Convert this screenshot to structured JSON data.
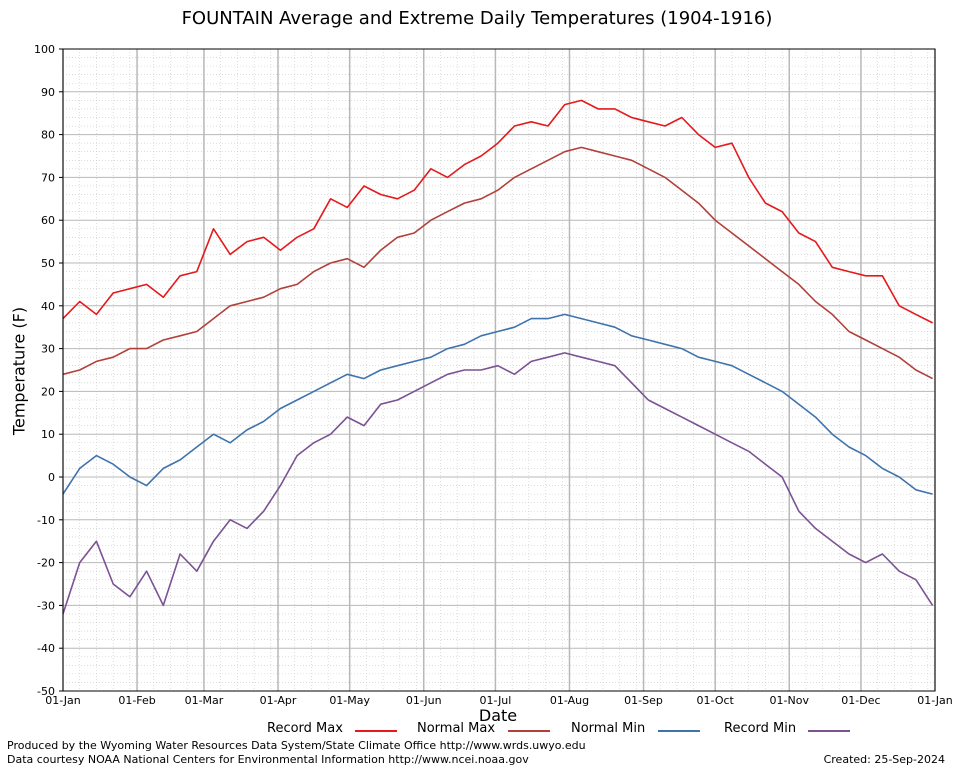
{
  "chart_data": {
    "type": "line",
    "title": "FOUNTAIN Average and Extreme Daily Temperatures (1904-1916)",
    "xlabel": "Date",
    "ylabel": "Temperature (F)",
    "ylim": [
      -50,
      100
    ],
    "yticks": [
      100,
      90,
      80,
      70,
      60,
      50,
      40,
      30,
      20,
      10,
      0,
      -10,
      -20,
      -30,
      -40,
      -50
    ],
    "xtick_labels": [
      "01-Jan",
      "01-Feb",
      "01-Mar",
      "01-Apr",
      "01-May",
      "01-Jun",
      "01-Jul",
      "01-Aug",
      "01-Sep",
      "01-Oct",
      "01-Nov",
      "01-Dec",
      "01-Jan"
    ],
    "xtick_days": [
      0,
      31,
      59,
      90,
      120,
      151,
      181,
      212,
      243,
      273,
      304,
      334,
      365
    ],
    "grid": true,
    "legend_position": "bottom",
    "series_points_note": "Values sampled every 7 days from day 0 (01-Jan) to day 364",
    "x_days": [
      0,
      7,
      14,
      21,
      28,
      35,
      42,
      49,
      56,
      63,
      70,
      77,
      84,
      91,
      98,
      105,
      112,
      119,
      126,
      133,
      140,
      147,
      154,
      161,
      168,
      175,
      182,
      189,
      196,
      203,
      210,
      217,
      224,
      231,
      238,
      245,
      252,
      259,
      266,
      273,
      280,
      287,
      294,
      301,
      308,
      315,
      322,
      329,
      336,
      343,
      350,
      357,
      364
    ],
    "series": [
      {
        "name": "Record Max",
        "color": "#e41a1c",
        "values": [
          37,
          41,
          38,
          43,
          44,
          45,
          42,
          47,
          48,
          58,
          52,
          55,
          56,
          53,
          56,
          58,
          65,
          63,
          68,
          66,
          65,
          67,
          72,
          70,
          73,
          75,
          78,
          82,
          83,
          82,
          87,
          88,
          86,
          86,
          84,
          83,
          82,
          84,
          80,
          77,
          78,
          70,
          64,
          62,
          57,
          55,
          49,
          48,
          47,
          47,
          40,
          38,
          36
        ]
      },
      {
        "name": "Normal Max",
        "color": "#b2403a",
        "values": [
          24,
          25,
          27,
          28,
          30,
          30,
          32,
          33,
          34,
          37,
          40,
          41,
          42,
          44,
          45,
          48,
          50,
          51,
          49,
          53,
          56,
          57,
          60,
          62,
          64,
          65,
          67,
          70,
          72,
          74,
          76,
          77,
          76,
          75,
          74,
          72,
          70,
          67,
          64,
          60,
          57,
          54,
          51,
          48,
          45,
          41,
          38,
          34,
          32,
          30,
          28,
          25,
          23
        ]
      },
      {
        "name": "Normal Min",
        "color": "#3f73ad",
        "values": [
          -4,
          2,
          5,
          3,
          0,
          -2,
          2,
          4,
          7,
          10,
          8,
          11,
          13,
          16,
          18,
          20,
          22,
          24,
          23,
          25,
          26,
          27,
          28,
          30,
          31,
          33,
          34,
          35,
          37,
          37,
          38,
          37,
          36,
          35,
          33,
          32,
          31,
          30,
          28,
          27,
          26,
          24,
          22,
          20,
          17,
          14,
          10,
          7,
          5,
          2,
          0,
          -3,
          -4
        ]
      },
      {
        "name": "Record Min",
        "color": "#7b5294",
        "values": [
          -32,
          -20,
          -15,
          -25,
          -28,
          -22,
          -30,
          -18,
          -22,
          -15,
          -10,
          -12,
          -8,
          -2,
          5,
          8,
          10,
          14,
          12,
          17,
          18,
          20,
          22,
          24,
          25,
          25,
          26,
          24,
          27,
          28,
          29,
          28,
          27,
          26,
          22,
          18,
          16,
          14,
          12,
          10,
          8,
          6,
          3,
          0,
          -8,
          -12,
          -15,
          -18,
          -20,
          -18,
          -22,
          -24,
          -30
        ]
      }
    ]
  },
  "footer": {
    "line1": "Produced by the Wyoming Water Resources Data System/State Climate Office http://www.wrds.uwyo.edu",
    "line2": "Data courtesy NOAA National Centers for Environmental Information http://www.ncei.noaa.gov",
    "created": "Created:  25-Sep-2024"
  }
}
